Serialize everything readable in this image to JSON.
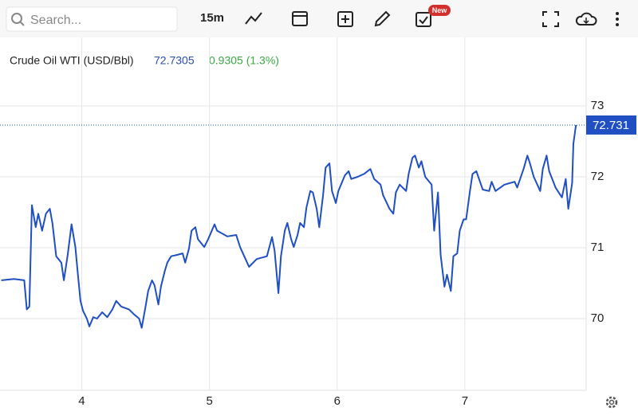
{
  "toolbar": {
    "search_placeholder": "Search...",
    "interval": "15m",
    "badge": "New"
  },
  "chart_data": {
    "type": "line",
    "title": "Crude Oil WTI (USD/Bbl)",
    "price": "72.7305",
    "change": "0.9305 (1.3%)",
    "color": "#1f4fc2",
    "last_value": 72.731,
    "grid": true,
    "xlim": [
      3.36,
      7.95
    ],
    "xticks": [
      4,
      5,
      6,
      7
    ],
    "ylim": [
      69,
      74
    ],
    "yticks": [
      70,
      71,
      72,
      73
    ],
    "x": [
      3.37,
      3.47,
      3.55,
      3.57,
      3.59,
      3.61,
      3.64,
      3.66,
      3.69,
      3.72,
      3.75,
      3.77,
      3.8,
      3.84,
      3.86,
      3.89,
      3.92,
      3.95,
      3.97,
      3.99,
      4.01,
      4.04,
      4.06,
      4.09,
      4.12,
      4.16,
      4.2,
      4.24,
      4.27,
      4.31,
      4.37,
      4.41,
      4.45,
      4.47,
      4.5,
      4.52,
      4.55,
      4.57,
      4.6,
      4.62,
      4.65,
      4.67,
      4.7,
      4.75,
      4.79,
      4.81,
      4.84,
      4.86,
      4.89,
      4.91,
      4.96,
      4.99,
      5.04,
      5.06,
      5.14,
      5.21,
      5.24,
      5.29,
      5.31,
      5.37,
      5.45,
      5.49,
      5.51,
      5.54,
      5.56,
      5.59,
      5.61,
      5.64,
      5.66,
      5.69,
      5.71,
      5.74,
      5.76,
      5.79,
      5.81,
      5.84,
      5.86,
      5.89,
      5.91,
      5.94,
      5.96,
      5.99,
      6.01,
      6.06,
      6.09,
      6.11,
      6.16,
      6.21,
      6.26,
      6.29,
      6.34,
      6.36,
      6.41,
      6.44,
      6.46,
      6.49,
      6.54,
      6.56,
      6.59,
      6.61,
      6.64,
      6.66,
      6.69,
      6.74,
      6.76,
      6.79,
      6.81,
      6.84,
      6.86,
      6.89,
      6.91,
      6.94,
      6.96,
      6.99,
      7.01,
      7.04,
      7.06,
      7.09,
      7.14,
      7.19,
      7.21,
      7.24,
      7.31,
      7.39,
      7.41,
      7.46,
      7.49,
      7.51,
      7.54,
      7.59,
      7.61,
      7.64,
      7.66,
      7.71,
      7.76,
      7.79,
      7.81,
      7.84,
      7.85,
      7.87
    ],
    "values": [
      70.54,
      70.56,
      70.54,
      70.13,
      70.17,
      71.6,
      71.29,
      71.48,
      71.24,
      71.48,
      71.55,
      71.35,
      70.88,
      70.79,
      70.54,
      70.9,
      71.33,
      71.01,
      70.62,
      70.25,
      70.11,
      70.0,
      69.89,
      70.02,
      70.0,
      70.09,
      70.02,
      70.13,
      70.25,
      70.17,
      70.13,
      70.06,
      70.0,
      69.87,
      70.17,
      70.39,
      70.54,
      70.47,
      70.2,
      70.45,
      70.67,
      70.79,
      70.88,
      70.9,
      70.92,
      70.79,
      70.99,
      71.24,
      71.29,
      71.12,
      71.01,
      71.12,
      71.33,
      71.24,
      71.16,
      71.18,
      71.01,
      70.81,
      70.73,
      70.84,
      70.88,
      71.15,
      70.96,
      70.36,
      70.88,
      71.24,
      71.35,
      71.12,
      71.01,
      71.18,
      71.35,
      71.29,
      71.57,
      71.8,
      71.78,
      71.55,
      71.29,
      71.74,
      72.13,
      72.19,
      71.8,
      71.63,
      71.8,
      72.02,
      72.08,
      71.97,
      72.0,
      72.04,
      72.11,
      71.97,
      71.89,
      71.74,
      71.55,
      71.48,
      71.78,
      71.89,
      71.8,
      72.04,
      72.27,
      72.3,
      72.13,
      72.22,
      72.0,
      71.89,
      71.24,
      71.78,
      70.9,
      70.45,
      70.62,
      70.39,
      70.88,
      70.92,
      71.24,
      71.4,
      71.4,
      71.8,
      72.04,
      72.08,
      71.82,
      71.8,
      71.93,
      71.8,
      71.89,
      71.93,
      71.85,
      72.11,
      72.3,
      72.19,
      72.0,
      71.8,
      72.11,
      72.3,
      72.08,
      71.85,
      71.71,
      71.97,
      71.55,
      71.91,
      72.47,
      72.73
    ]
  }
}
